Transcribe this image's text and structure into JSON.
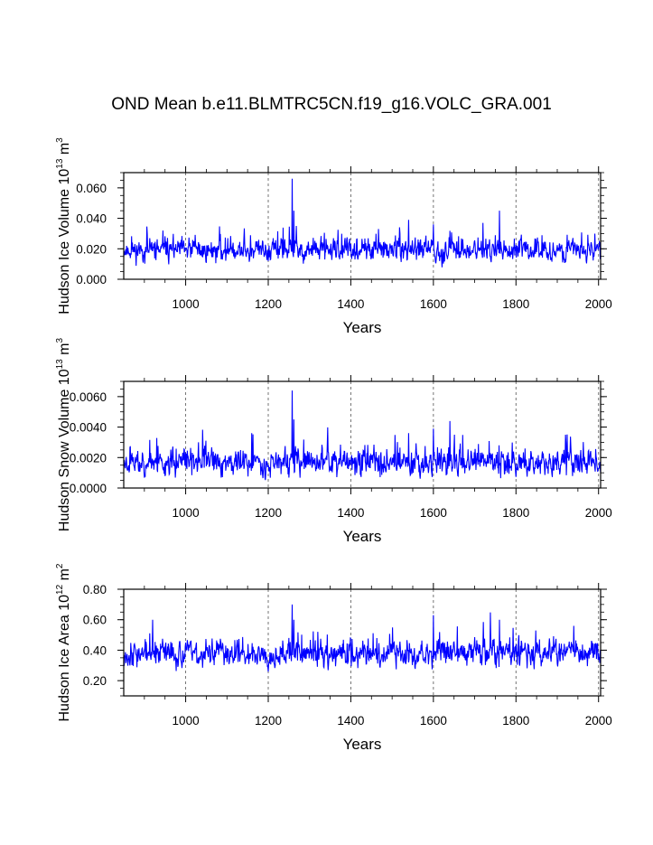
{
  "title": "OND Mean b.e11.BLMTRC5CN.f19_g16.VOLC_GRA.001",
  "chart_data": [
    {
      "type": "line",
      "title": "OND Mean b.e11.BLMTRC5CN.f19_g16.VOLC_GRA.001",
      "xlabel": "Years",
      "ylabel": {
        "main": "Hudson Ice Volume 10",
        "exp": "13",
        "unit": " m",
        "unit_exp": "3"
      },
      "xlim": [
        850,
        2005
      ],
      "ylim": [
        0,
        0.07
      ],
      "xticks": [
        1000,
        1200,
        1400,
        1600,
        1800,
        2000
      ],
      "xtick_labels": [
        "1000",
        "1200",
        "1400",
        "1600",
        "1800",
        "2000"
      ],
      "yticks": [
        0,
        0.02,
        0.04,
        0.06
      ],
      "ytick_labels": [
        "0.000",
        "0.020",
        "0.040",
        "0.060"
      ],
      "grid": "vertical dashed at x ticks",
      "color": "#0000ff",
      "series": {
        "name": "Hudson Ice Volume",
        "baseline": 0.019,
        "amplitude": 0.0055,
        "floor": 0.006,
        "seed": 11,
        "peaks": [
          [
            1258,
            0.066
          ],
          [
            1262,
            0.045
          ],
          [
            1268,
            0.035
          ],
          [
            1467,
            0.033
          ],
          [
            1540,
            0.039
          ],
          [
            1600,
            0.036
          ],
          [
            1720,
            0.037
          ],
          [
            1760,
            0.045
          ]
        ]
      }
    },
    {
      "type": "line",
      "xlabel": "Years",
      "ylabel": {
        "main": "Hudson Snow Volume 10",
        "exp": "13",
        "unit": " m",
        "unit_exp": "3"
      },
      "xlim": [
        850,
        2005
      ],
      "ylim": [
        0,
        0.007
      ],
      "xticks": [
        1000,
        1200,
        1400,
        1600,
        1800,
        2000
      ],
      "xtick_labels": [
        "1000",
        "1200",
        "1400",
        "1600",
        "1800",
        "2000"
      ],
      "yticks": [
        0,
        0.002,
        0.004,
        0.006
      ],
      "ytick_labels": [
        "0.0000",
        "0.0020",
        "0.0040",
        "0.0060"
      ],
      "grid": "vertical dashed at x ticks",
      "color": "#0000ff",
      "series": {
        "name": "Hudson Snow Volume",
        "baseline": 0.0017,
        "amplitude": 0.00065,
        "floor": 0.0004,
        "seed": 23,
        "peaks": [
          [
            1258,
            0.0064
          ],
          [
            1262,
            0.0045
          ],
          [
            1160,
            0.0036
          ],
          [
            1540,
            0.0036
          ],
          [
            1600,
            0.0039
          ],
          [
            1640,
            0.0044
          ],
          [
            1920,
            0.0035
          ]
        ]
      }
    },
    {
      "type": "line",
      "xlabel": "Years",
      "ylabel": {
        "main": "Hudson Ice Area 10",
        "exp": "12",
        "unit": " m",
        "unit_exp": "2"
      },
      "xlim": [
        850,
        2005
      ],
      "ylim": [
        0.1,
        0.8
      ],
      "xticks": [
        1000,
        1200,
        1400,
        1600,
        1800,
        2000
      ],
      "xtick_labels": [
        "1000",
        "1200",
        "1400",
        "1600",
        "1800",
        "2000"
      ],
      "yticks": [
        0.2,
        0.4,
        0.6,
        0.8
      ],
      "ytick_labels": [
        "0.20",
        "0.40",
        "0.60",
        "0.80"
      ],
      "grid": "vertical dashed at x ticks",
      "color": "#0000ff",
      "series": {
        "name": "Hudson Ice Area",
        "baseline": 0.38,
        "amplitude": 0.065,
        "floor": 0.16,
        "seed": 37,
        "peaks": [
          [
            1258,
            0.7
          ],
          [
            1262,
            0.6
          ],
          [
            1600,
            0.63
          ],
          [
            1760,
            0.6
          ],
          [
            1940,
            0.56
          ],
          [
            920,
            0.6
          ]
        ]
      }
    }
  ]
}
